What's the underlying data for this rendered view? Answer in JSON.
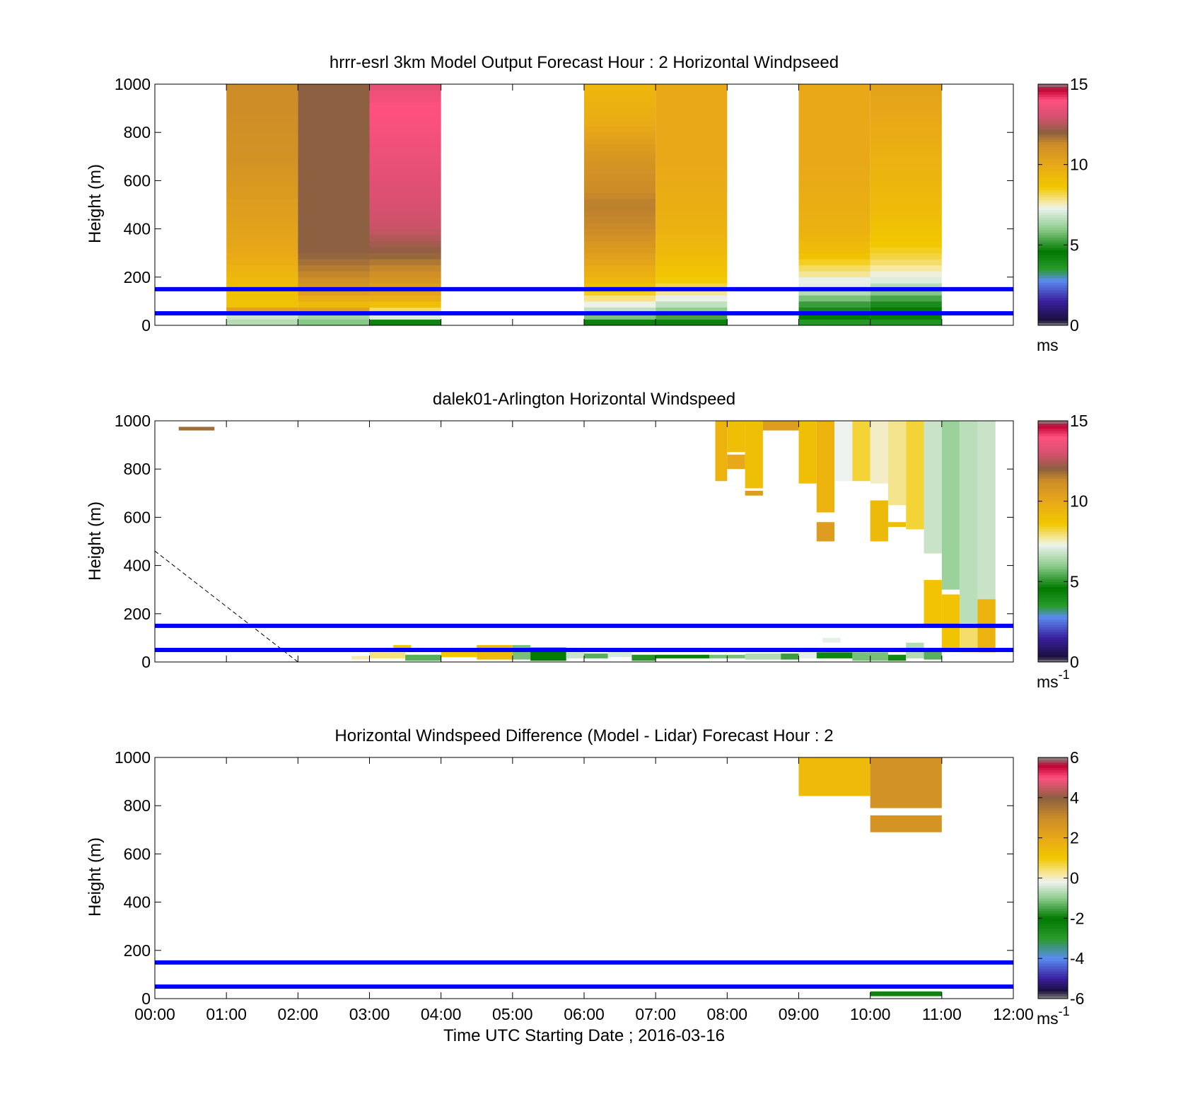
{
  "figure": {
    "xlabel": "Time UTC  Starting Date ; 2016-03-16",
    "x_ticks": [
      "00:00",
      "01:00",
      "02:00",
      "03:00",
      "04:00",
      "05:00",
      "06:00",
      "07:00",
      "08:00",
      "09:00",
      "10:00",
      "11:00",
      "12:00"
    ]
  },
  "colors": {
    "reference_line": "#0000ff",
    "speed_colormap": [
      {
        "v": 0,
        "c": "#888888"
      },
      {
        "v": 0.3,
        "c": "#1a0f3c"
      },
      {
        "v": 1.5,
        "c": "#3a1f9e"
      },
      {
        "v": 2.8,
        "c": "#5a8cf0"
      },
      {
        "v": 3.5,
        "c": "#2a9b2a"
      },
      {
        "v": 4.6,
        "c": "#007a00"
      },
      {
        "v": 6,
        "c": "#8ccc8c"
      },
      {
        "v": 7.3,
        "c": "#eef2ee"
      },
      {
        "v": 7.7,
        "c": "#f5e8a0"
      },
      {
        "v": 8.6,
        "c": "#f2c800"
      },
      {
        "v": 10,
        "c": "#e8a818"
      },
      {
        "v": 11.3,
        "c": "#cc8c28"
      },
      {
        "v": 12,
        "c": "#8c6040"
      },
      {
        "v": 13,
        "c": "#d85070"
      },
      {
        "v": 14,
        "c": "#ff5080"
      },
      {
        "v": 14.7,
        "c": "#c00030"
      },
      {
        "v": 15,
        "c": "#888888"
      }
    ],
    "diff_colormap": [
      {
        "v": -6,
        "c": "#888888"
      },
      {
        "v": -5.6,
        "c": "#1a0f3c"
      },
      {
        "v": -5,
        "c": "#3a1f9e"
      },
      {
        "v": -4,
        "c": "#5a8cf0"
      },
      {
        "v": -3,
        "c": "#2a9b2a"
      },
      {
        "v": -2,
        "c": "#007a00"
      },
      {
        "v": -1,
        "c": "#8ccc8c"
      },
      {
        "v": -0.2,
        "c": "#eef2ee"
      },
      {
        "v": 0.2,
        "c": "#f5e8a0"
      },
      {
        "v": 1,
        "c": "#f2c800"
      },
      {
        "v": 2,
        "c": "#e8a818"
      },
      {
        "v": 3,
        "c": "#cc8c28"
      },
      {
        "v": 4,
        "c": "#8c6040"
      },
      {
        "v": 5,
        "c": "#ff5080"
      },
      {
        "v": 5.6,
        "c": "#c00030"
      },
      {
        "v": 6,
        "c": "#888888"
      }
    ]
  },
  "chart_data": [
    {
      "type": "heatmap",
      "title": "hrrr-esrl 3km Model Output   Forecast Hour : 2 Horizontal Windpseed",
      "ylabel": "Height (m)",
      "xlim": [
        "00:00",
        "12:00"
      ],
      "ylim": [
        0,
        1000
      ],
      "y_ticks": [
        "0",
        "200",
        "400",
        "600",
        "800",
        "1000"
      ],
      "colorbar": {
        "range": [
          0,
          15
        ],
        "ticks": [
          "0",
          "5",
          "10",
          "15"
        ],
        "unit": "ms",
        "unit_superscript": "",
        "colormap": "speed_colormap"
      },
      "reference_lines_m": [
        50,
        150
      ],
      "columns": [
        {
          "t0": "01:00",
          "t1": "02:00",
          "profile": [
            [
              0,
              7.5
            ],
            [
              20,
              6
            ],
            [
              40,
              7
            ],
            [
              60,
              10.5
            ],
            [
              80,
              9
            ],
            [
              100,
              8.8
            ],
            [
              150,
              9
            ],
            [
              200,
              9.3
            ],
            [
              300,
              10
            ],
            [
              500,
              10.5
            ],
            [
              700,
              11
            ],
            [
              1000,
              11.3
            ]
          ]
        },
        {
          "t0": "02:00",
          "t1": "03:00",
          "profile": [
            [
              0,
              7.5
            ],
            [
              20,
              5
            ],
            [
              40,
              6.5
            ],
            [
              60,
              10.5
            ],
            [
              80,
              9
            ],
            [
              150,
              10.8
            ],
            [
              200,
              11.3
            ],
            [
              300,
              12
            ],
            [
              600,
              12
            ],
            [
              1000,
              12
            ]
          ]
        },
        {
          "t0": "03:00",
          "t1": "04:00",
          "profile": [
            [
              0,
              5
            ],
            [
              20,
              4.6
            ],
            [
              40,
              7.5
            ],
            [
              60,
              8
            ],
            [
              80,
              8.8
            ],
            [
              120,
              10
            ],
            [
              200,
              11
            ],
            [
              300,
              12
            ],
            [
              400,
              12.8
            ],
            [
              500,
              13
            ],
            [
              700,
              13.5
            ],
            [
              900,
              14
            ],
            [
              1000,
              13.3
            ]
          ]
        },
        {
          "t0": "06:00",
          "t1": "07:00",
          "profile": [
            [
              0,
              4.6
            ],
            [
              20,
              4.8
            ],
            [
              40,
              6
            ],
            [
              80,
              7.2
            ],
            [
              120,
              8
            ],
            [
              160,
              9
            ],
            [
              200,
              9.5
            ],
            [
              300,
              10.5
            ],
            [
              400,
              11.3
            ],
            [
              500,
              11.5
            ],
            [
              700,
              10.8
            ],
            [
              850,
              9.8
            ],
            [
              1000,
              9.3
            ]
          ]
        },
        {
          "t0": "07:00",
          "t1": "08:00",
          "profile": [
            [
              0,
              4.6
            ],
            [
              20,
              4.8
            ],
            [
              60,
              6
            ],
            [
              100,
              7
            ],
            [
              140,
              7.8
            ],
            [
              180,
              8.5
            ],
            [
              250,
              9
            ],
            [
              400,
              9.6
            ],
            [
              700,
              10
            ],
            [
              1000,
              10
            ]
          ]
        },
        {
          "t0": "09:00",
          "t1": "10:00",
          "profile": [
            [
              0,
              3
            ],
            [
              20,
              4
            ],
            [
              40,
              4.6
            ],
            [
              80,
              5
            ],
            [
              120,
              6
            ],
            [
              160,
              7.2
            ],
            [
              180,
              7
            ],
            [
              200,
              7.6
            ],
            [
              250,
              8.2
            ],
            [
              300,
              9
            ],
            [
              400,
              9.6
            ],
            [
              700,
              10
            ],
            [
              1000,
              10
            ]
          ]
        },
        {
          "t0": "10:00",
          "t1": "11:00",
          "profile": [
            [
              0,
              3
            ],
            [
              20,
              4.2
            ],
            [
              60,
              4.6
            ],
            [
              100,
              5
            ],
            [
              140,
              6
            ],
            [
              180,
              7
            ],
            [
              220,
              7.5
            ],
            [
              280,
              8.2
            ],
            [
              350,
              8.7
            ],
            [
              500,
              9.2
            ],
            [
              700,
              9.6
            ],
            [
              1000,
              10.3
            ]
          ]
        }
      ]
    },
    {
      "type": "heatmap",
      "title": "dalek01-Arlington  Horizontal Windspeed",
      "ylabel": "Height (m)",
      "xlim": [
        "00:00",
        "12:00"
      ],
      "ylim": [
        0,
        1000
      ],
      "y_ticks": [
        "0",
        "200",
        "400",
        "600",
        "800",
        "1000"
      ],
      "colorbar": {
        "range": [
          0,
          15
        ],
        "ticks": [
          "0",
          "5",
          "10",
          "15"
        ],
        "unit": "ms",
        "unit_superscript": "-1",
        "colormap": "speed_colormap"
      },
      "reference_lines_m": [
        50,
        150
      ],
      "dashed_line": [
        [
          "00:00",
          460
        ],
        [
          "02:00",
          0
        ]
      ],
      "cells": [
        {
          "t0": "00:20",
          "t1": "00:50",
          "h0": 960,
          "h1": 975,
          "v": 11.8
        },
        {
          "t0": "07:50",
          "t1": "08:00",
          "h0": 750,
          "h1": 1000,
          "v": 9.5
        },
        {
          "t0": "08:00",
          "t1": "08:15",
          "h0": 870,
          "h1": 1000,
          "v": 9
        },
        {
          "t0": "08:00",
          "t1": "08:15",
          "h0": 800,
          "h1": 860,
          "v": 10
        },
        {
          "t0": "08:15",
          "t1": "08:30",
          "h0": 720,
          "h1": 1000,
          "v": 9
        },
        {
          "t0": "08:15",
          "t1": "08:30",
          "h0": 690,
          "h1": 710,
          "v": 10.5
        },
        {
          "t0": "08:30",
          "t1": "09:00",
          "h0": 960,
          "h1": 1000,
          "v": 10.5
        },
        {
          "t0": "09:00",
          "t1": "09:15",
          "h0": 740,
          "h1": 1000,
          "v": 9
        },
        {
          "t0": "09:15",
          "t1": "09:30",
          "h0": 620,
          "h1": 1000,
          "v": 9.5
        },
        {
          "t0": "09:15",
          "t1": "09:30",
          "h0": 500,
          "h1": 580,
          "v": 10.5
        },
        {
          "t0": "09:30",
          "t1": "09:45",
          "h0": 750,
          "h1": 1000,
          "v": 7.3
        },
        {
          "t0": "09:45",
          "t1": "10:00",
          "h0": 750,
          "h1": 1000,
          "v": 8.3
        },
        {
          "t0": "10:00",
          "t1": "10:15",
          "h0": 740,
          "h1": 1000,
          "v": 7.5
        },
        {
          "t0": "10:00",
          "t1": "10:15",
          "h0": 500,
          "h1": 670,
          "v": 9.2
        },
        {
          "t0": "10:15",
          "t1": "10:30",
          "h0": 650,
          "h1": 1000,
          "v": 7.8
        },
        {
          "t0": "10:15",
          "t1": "10:30",
          "h0": 560,
          "h1": 580,
          "v": 9
        },
        {
          "t0": "10:30",
          "t1": "10:45",
          "h0": 550,
          "h1": 1000,
          "v": 8.3
        },
        {
          "t0": "10:45",
          "t1": "11:00",
          "h0": 450,
          "h1": 1000,
          "v": 6.8
        },
        {
          "t0": "10:45",
          "t1": "11:00",
          "h0": 150,
          "h1": 340,
          "v": 8.8
        },
        {
          "t0": "11:00",
          "t1": "11:15",
          "h0": 300,
          "h1": 1000,
          "v": 6.2
        },
        {
          "t0": "11:00",
          "t1": "11:15",
          "h0": 50,
          "h1": 280,
          "v": 8.8
        },
        {
          "t0": "11:15",
          "t1": "11:30",
          "h0": 160,
          "h1": 1000,
          "v": 6.6
        },
        {
          "t0": "11:15",
          "t1": "11:30",
          "h0": 40,
          "h1": 150,
          "v": 8
        },
        {
          "t0": "11:30",
          "t1": "11:45",
          "h0": 150,
          "h1": 1000,
          "v": 6.8
        },
        {
          "t0": "11:30",
          "t1": "11:45",
          "h0": 40,
          "h1": 260,
          "v": 9.5
        },
        {
          "t0": "02:45",
          "t1": "03:00",
          "h0": 10,
          "h1": 25,
          "v": 7.6
        },
        {
          "t0": "03:00",
          "t1": "03:30",
          "h0": 15,
          "h1": 40,
          "v": 7.9
        },
        {
          "t0": "03:20",
          "t1": "03:35",
          "h0": 45,
          "h1": 70,
          "v": 8.7
        },
        {
          "t0": "03:30",
          "t1": "04:00",
          "h0": 5,
          "h1": 30,
          "v": 5.5
        },
        {
          "t0": "04:00",
          "t1": "04:30",
          "h0": 20,
          "h1": 45,
          "v": 8.6
        },
        {
          "t0": "04:30",
          "t1": "05:00",
          "h0": 10,
          "h1": 70,
          "v": 9.2
        },
        {
          "t0": "05:00",
          "t1": "05:15",
          "h0": 10,
          "h1": 70,
          "v": 5.8
        },
        {
          "t0": "05:15",
          "t1": "05:45",
          "h0": 5,
          "h1": 60,
          "v": 4.6
        },
        {
          "t0": "05:45",
          "t1": "06:00",
          "h0": 15,
          "h1": 40,
          "v": 6.8
        },
        {
          "t0": "06:00",
          "t1": "06:20",
          "h0": 15,
          "h1": 35,
          "v": 5.5
        },
        {
          "t0": "06:20",
          "t1": "06:40",
          "h0": 20,
          "h1": 40,
          "v": 7
        },
        {
          "t0": "06:40",
          "t1": "07:00",
          "h0": 5,
          "h1": 30,
          "v": 5
        },
        {
          "t0": "07:00",
          "t1": "07:45",
          "h0": 15,
          "h1": 30,
          "v": 4.7
        },
        {
          "t0": "07:45",
          "t1": "08:15",
          "h0": 15,
          "h1": 30,
          "v": 5.8
        },
        {
          "t0": "08:15",
          "t1": "08:45",
          "h0": 10,
          "h1": 35,
          "v": 6.5
        },
        {
          "t0": "08:45",
          "t1": "09:00",
          "h0": 10,
          "h1": 35,
          "v": 5.2
        },
        {
          "t0": "09:00",
          "t1": "09:15",
          "h0": 15,
          "h1": 40,
          "v": 7.2
        },
        {
          "t0": "09:15",
          "t1": "09:45",
          "h0": 15,
          "h1": 40,
          "v": 4.2
        },
        {
          "t0": "09:20",
          "t1": "09:35",
          "h0": 80,
          "h1": 100,
          "v": 7.2
        },
        {
          "t0": "09:45",
          "t1": "10:15",
          "h0": 5,
          "h1": 40,
          "v": 5.8
        },
        {
          "t0": "10:15",
          "t1": "10:30",
          "h0": 5,
          "h1": 30,
          "v": 4.8
        },
        {
          "t0": "10:30",
          "t1": "10:45",
          "h0": 15,
          "h1": 80,
          "v": 6.5
        },
        {
          "t0": "10:45",
          "t1": "11:00",
          "h0": 10,
          "h1": 50,
          "v": 5.5
        }
      ]
    },
    {
      "type": "heatmap",
      "title": "Horizontal Windspeed Difference (Model - Lidar) Forecast Hour : 2",
      "ylabel": "Height (m)",
      "xlim": [
        "00:00",
        "12:00"
      ],
      "ylim": [
        0,
        1000
      ],
      "y_ticks": [
        "0",
        "200",
        "400",
        "600",
        "800",
        "1000"
      ],
      "colorbar": {
        "range": [
          -6,
          6
        ],
        "ticks": [
          "-6",
          "-4",
          "-2",
          "0",
          "2",
          "4",
          "6"
        ],
        "unit": "ms",
        "unit_superscript": "-1",
        "colormap": "diff_colormap"
      },
      "reference_lines_m": [
        50,
        150
      ],
      "cells": [
        {
          "t0": "09:00",
          "t1": "10:00",
          "h0": 840,
          "h1": 1000,
          "v": 1.4
        },
        {
          "t0": "10:00",
          "t1": "11:00",
          "h0": 790,
          "h1": 1000,
          "v": 2.8
        },
        {
          "t0": "10:00",
          "t1": "11:00",
          "h0": 690,
          "h1": 760,
          "v": 2.7
        },
        {
          "t0": "10:00",
          "t1": "11:00",
          "h0": 10,
          "h1": 30,
          "v": -2.3
        }
      ]
    }
  ]
}
